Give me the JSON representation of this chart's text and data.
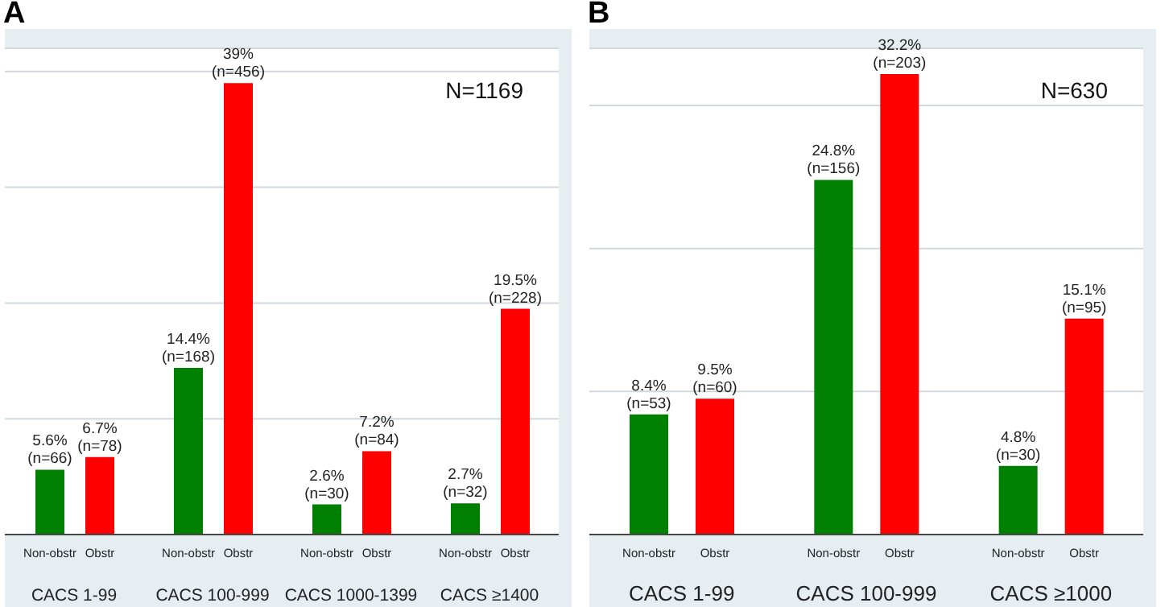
{
  "chart_data": [
    {
      "type": "bar",
      "title": "A",
      "categories": [
        "CACS 1-99",
        "CACS 100-999",
        "CACS 1000-1399",
        "CACS ≥1400"
      ],
      "series": [
        {
          "name": "Non-obstr",
          "color": "#008000",
          "values": [
            5.6,
            14.4,
            2.6,
            2.7
          ],
          "value_labels": [
            "5.6%\n(n=66)",
            "14.4%\n(n=168)",
            "2.6%\n(n=30)",
            "2.7%\n(n=32)"
          ]
        },
        {
          "name": "Obstr",
          "color": "#ff0000",
          "values": [
            6.7,
            39,
            7.2,
            19.5
          ],
          "value_labels": [
            "6.7%\n(n=78)",
            "39%\n(n=456)",
            "7.2%\n(n=84)",
            "19.5%\n(n=228)"
          ]
        }
      ],
      "ylim": [
        0,
        42
      ],
      "yticks": [
        {
          "value": 10,
          "label": null
        },
        {
          "value": 20,
          "label": null
        },
        {
          "value": 30,
          "label": null
        },
        {
          "value": 40,
          "label": null
        }
      ],
      "grid": "y",
      "legend": false,
      "tick_labels": "x",
      "annotations": [
        "N=1169"
      ]
    },
    {
      "type": "bar",
      "title": "B",
      "categories": [
        "CACS 1-99",
        "CACS 100-999",
        "CACS ≥1000"
      ],
      "series": [
        {
          "name": "Non-obstr",
          "color": "#008000",
          "values": [
            8.4,
            24.8,
            4.8
          ],
          "value_labels": [
            "8.4%\n(n=53)",
            "24.8%\n(n=156)",
            "4.8%\n(n=30)"
          ]
        },
        {
          "name": "Obstr",
          "color": "#ff0000",
          "values": [
            9.5,
            32.2,
            15.1
          ],
          "value_labels": [
            "9.5%\n(n=60)",
            "32.2%\n(n=203)",
            "15.1%\n(n=95)"
          ]
        }
      ],
      "ylim": [
        0,
        34
      ],
      "yticks": [
        {
          "value": 10,
          "label": null
        },
        {
          "value": 20,
          "label": null
        },
        {
          "value": 30,
          "label": null
        }
      ],
      "grid": "y",
      "legend": false,
      "tick_labels": "x",
      "annotations": [
        "N=630"
      ]
    }
  ]
}
